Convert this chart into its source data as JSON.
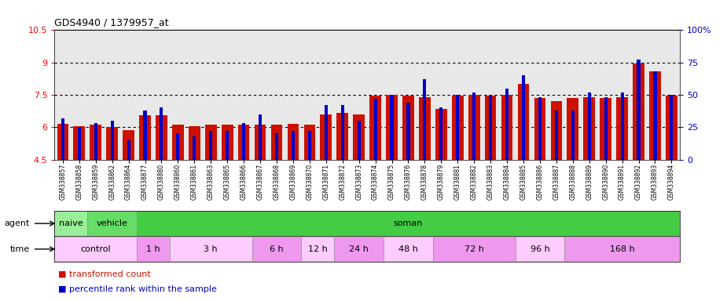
{
  "title": "GDS4940 / 1379957_at",
  "samples": [
    "GSM338857",
    "GSM338858",
    "GSM338859",
    "GSM338862",
    "GSM338864",
    "GSM338877",
    "GSM338880",
    "GSM338860",
    "GSM338861",
    "GSM338863",
    "GSM338865",
    "GSM338866",
    "GSM338867",
    "GSM338868",
    "GSM338869",
    "GSM338870",
    "GSM338871",
    "GSM338872",
    "GSM338873",
    "GSM338874",
    "GSM338875",
    "GSM338876",
    "GSM338878",
    "GSM338879",
    "GSM338881",
    "GSM338882",
    "GSM338883",
    "GSM338884",
    "GSM338885",
    "GSM338886",
    "GSM338887",
    "GSM338888",
    "GSM338889",
    "GSM338890",
    "GSM338891",
    "GSM338892",
    "GSM338893",
    "GSM338894"
  ],
  "red_values": [
    6.15,
    6.05,
    6.1,
    6.0,
    5.85,
    6.55,
    6.55,
    6.1,
    6.05,
    6.1,
    6.1,
    6.1,
    6.1,
    6.1,
    6.15,
    6.1,
    6.6,
    6.65,
    6.6,
    7.45,
    7.5,
    7.45,
    7.4,
    6.85,
    7.45,
    7.5,
    7.45,
    7.5,
    8.0,
    7.35,
    7.2,
    7.35,
    7.4,
    7.35,
    7.4,
    8.95,
    8.6,
    7.45
  ],
  "blue_percentiles": [
    32,
    25,
    28,
    30,
    15,
    38,
    40,
    20,
    18,
    22,
    22,
    28,
    35,
    20,
    22,
    22,
    42,
    42,
    30,
    47,
    50,
    44,
    62,
    40,
    50,
    52,
    50,
    55,
    65,
    48,
    38,
    38,
    52,
    48,
    52,
    77,
    68,
    50
  ],
  "bar_bottom": 4.5,
  "ylim_left": [
    4.5,
    10.5
  ],
  "ylim_right": [
    0,
    100
  ],
  "yticks_left": [
    4.5,
    6.0,
    7.5,
    9.0,
    10.5
  ],
  "ytick_labels_left": [
    "4.5",
    "6",
    "7.5",
    "9",
    "10.5"
  ],
  "yticks_right": [
    0,
    25,
    50,
    75,
    100
  ],
  "ytick_labels_right": [
    "0",
    "25",
    "50",
    "75",
    "100%"
  ],
  "dotted_lines": [
    6.0,
    7.5,
    9.0
  ],
  "bar_color": "#cc1100",
  "blue_color": "#0000cc",
  "bg_color": "#e8e8e8",
  "agent_groups": [
    {
      "label": "naive",
      "start": 0,
      "end": 2,
      "color": "#99ee99"
    },
    {
      "label": "vehicle",
      "start": 2,
      "end": 5,
      "color": "#66dd66"
    },
    {
      "label": "soman",
      "start": 5,
      "end": 38,
      "color": "#44cc44"
    }
  ],
  "time_groups": [
    {
      "label": "control",
      "start": 0,
      "end": 5,
      "color": "#ffccff"
    },
    {
      "label": "1 h",
      "start": 5,
      "end": 7,
      "color": "#ee99ee"
    },
    {
      "label": "3 h",
      "start": 7,
      "end": 12,
      "color": "#ffccff"
    },
    {
      "label": "6 h",
      "start": 12,
      "end": 15,
      "color": "#ee99ee"
    },
    {
      "label": "12 h",
      "start": 15,
      "end": 17,
      "color": "#ffccff"
    },
    {
      "label": "24 h",
      "start": 17,
      "end": 20,
      "color": "#ee99ee"
    },
    {
      "label": "48 h",
      "start": 20,
      "end": 23,
      "color": "#ffccff"
    },
    {
      "label": "72 h",
      "start": 23,
      "end": 28,
      "color": "#ee99ee"
    },
    {
      "label": "96 h",
      "start": 28,
      "end": 31,
      "color": "#ffccff"
    },
    {
      "label": "168 h",
      "start": 31,
      "end": 38,
      "color": "#ee99ee"
    }
  ],
  "legend_red": "transformed count",
  "legend_blue": "percentile rank within the sample"
}
